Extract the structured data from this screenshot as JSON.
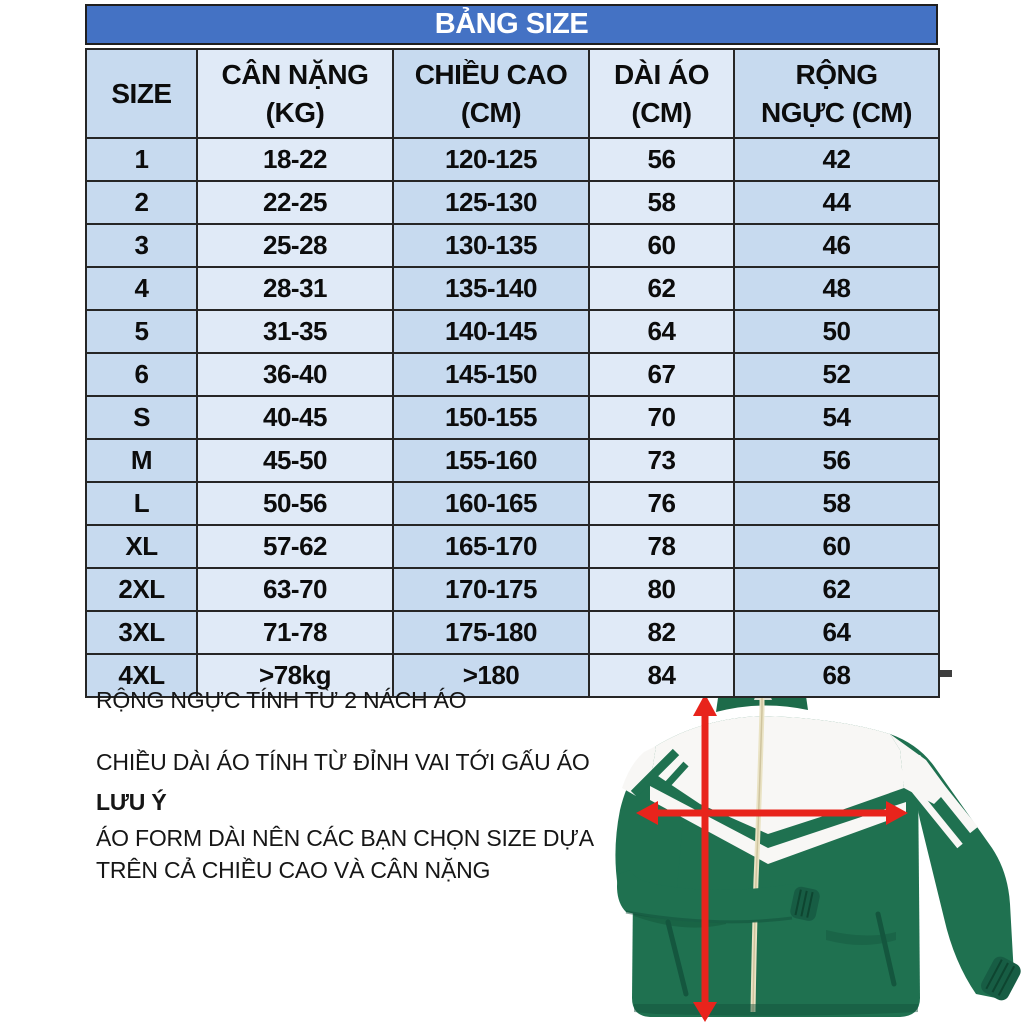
{
  "title": "BẢNG SIZE",
  "table": {
    "headers": [
      {
        "line1": "SIZE",
        "line2": ""
      },
      {
        "line1": "CÂN NẶNG",
        "line2": "(KG)"
      },
      {
        "line1": "CHIỀU CAO",
        "line2": "(CM)"
      },
      {
        "line1": "DÀI ÁO",
        "line2": "(CM)"
      },
      {
        "line1": "RỘNG",
        "line2": "NGỰC (CM)"
      }
    ],
    "rows": [
      [
        "1",
        "18-22",
        "120-125",
        "56",
        "42"
      ],
      [
        "2",
        "22-25",
        "125-130",
        "58",
        "44"
      ],
      [
        "3",
        "25-28",
        "130-135",
        "60",
        "46"
      ],
      [
        "4",
        "28-31",
        "135-140",
        "62",
        "48"
      ],
      [
        "5",
        "31-35",
        "140-145",
        "64",
        "50"
      ],
      [
        "6",
        "36-40",
        "145-150",
        "67",
        "52"
      ],
      [
        "S",
        "40-45",
        "150-155",
        "70",
        "54"
      ],
      [
        "M",
        "45-50",
        "155-160",
        "73",
        "56"
      ],
      [
        "L",
        "50-56",
        "160-165",
        "76",
        "58"
      ],
      [
        "XL",
        "57-62",
        "165-170",
        "78",
        "60"
      ],
      [
        "2XL",
        "63-70",
        "170-175",
        "80",
        "62"
      ],
      [
        "3XL",
        "71-78",
        "175-180",
        "82",
        "64"
      ],
      [
        "4XL",
        ">78kg",
        ">180",
        "84",
        "68"
      ]
    ]
  },
  "notes": {
    "chest": "RỘNG NGỰC TÍNH TỪ 2 NÁCH ÁO",
    "length": "CHIỀU DÀI ÁO TÍNH TỪ ĐỈNH VAI TỚI GẤU ÁO",
    "warning_title": "LƯU Ý",
    "warning_body": "ÁO FORM DÀI NÊN CÁC BẠN CHỌN SIZE DỰA TRÊN CẢ CHIỀU CAO VÀ CÂN NẶNG"
  },
  "colors": {
    "title_bar_blue": "#4472c4",
    "column_dark_blue": "#c7daef",
    "column_light_blue": "#e0eaf7",
    "table_border": "#262626",
    "jacket_green": "#1f7150",
    "jacket_panel_white": "#f8f7f5",
    "zipper_cream": "#eae3c4",
    "measure_arrow_red": "#e8241c"
  }
}
